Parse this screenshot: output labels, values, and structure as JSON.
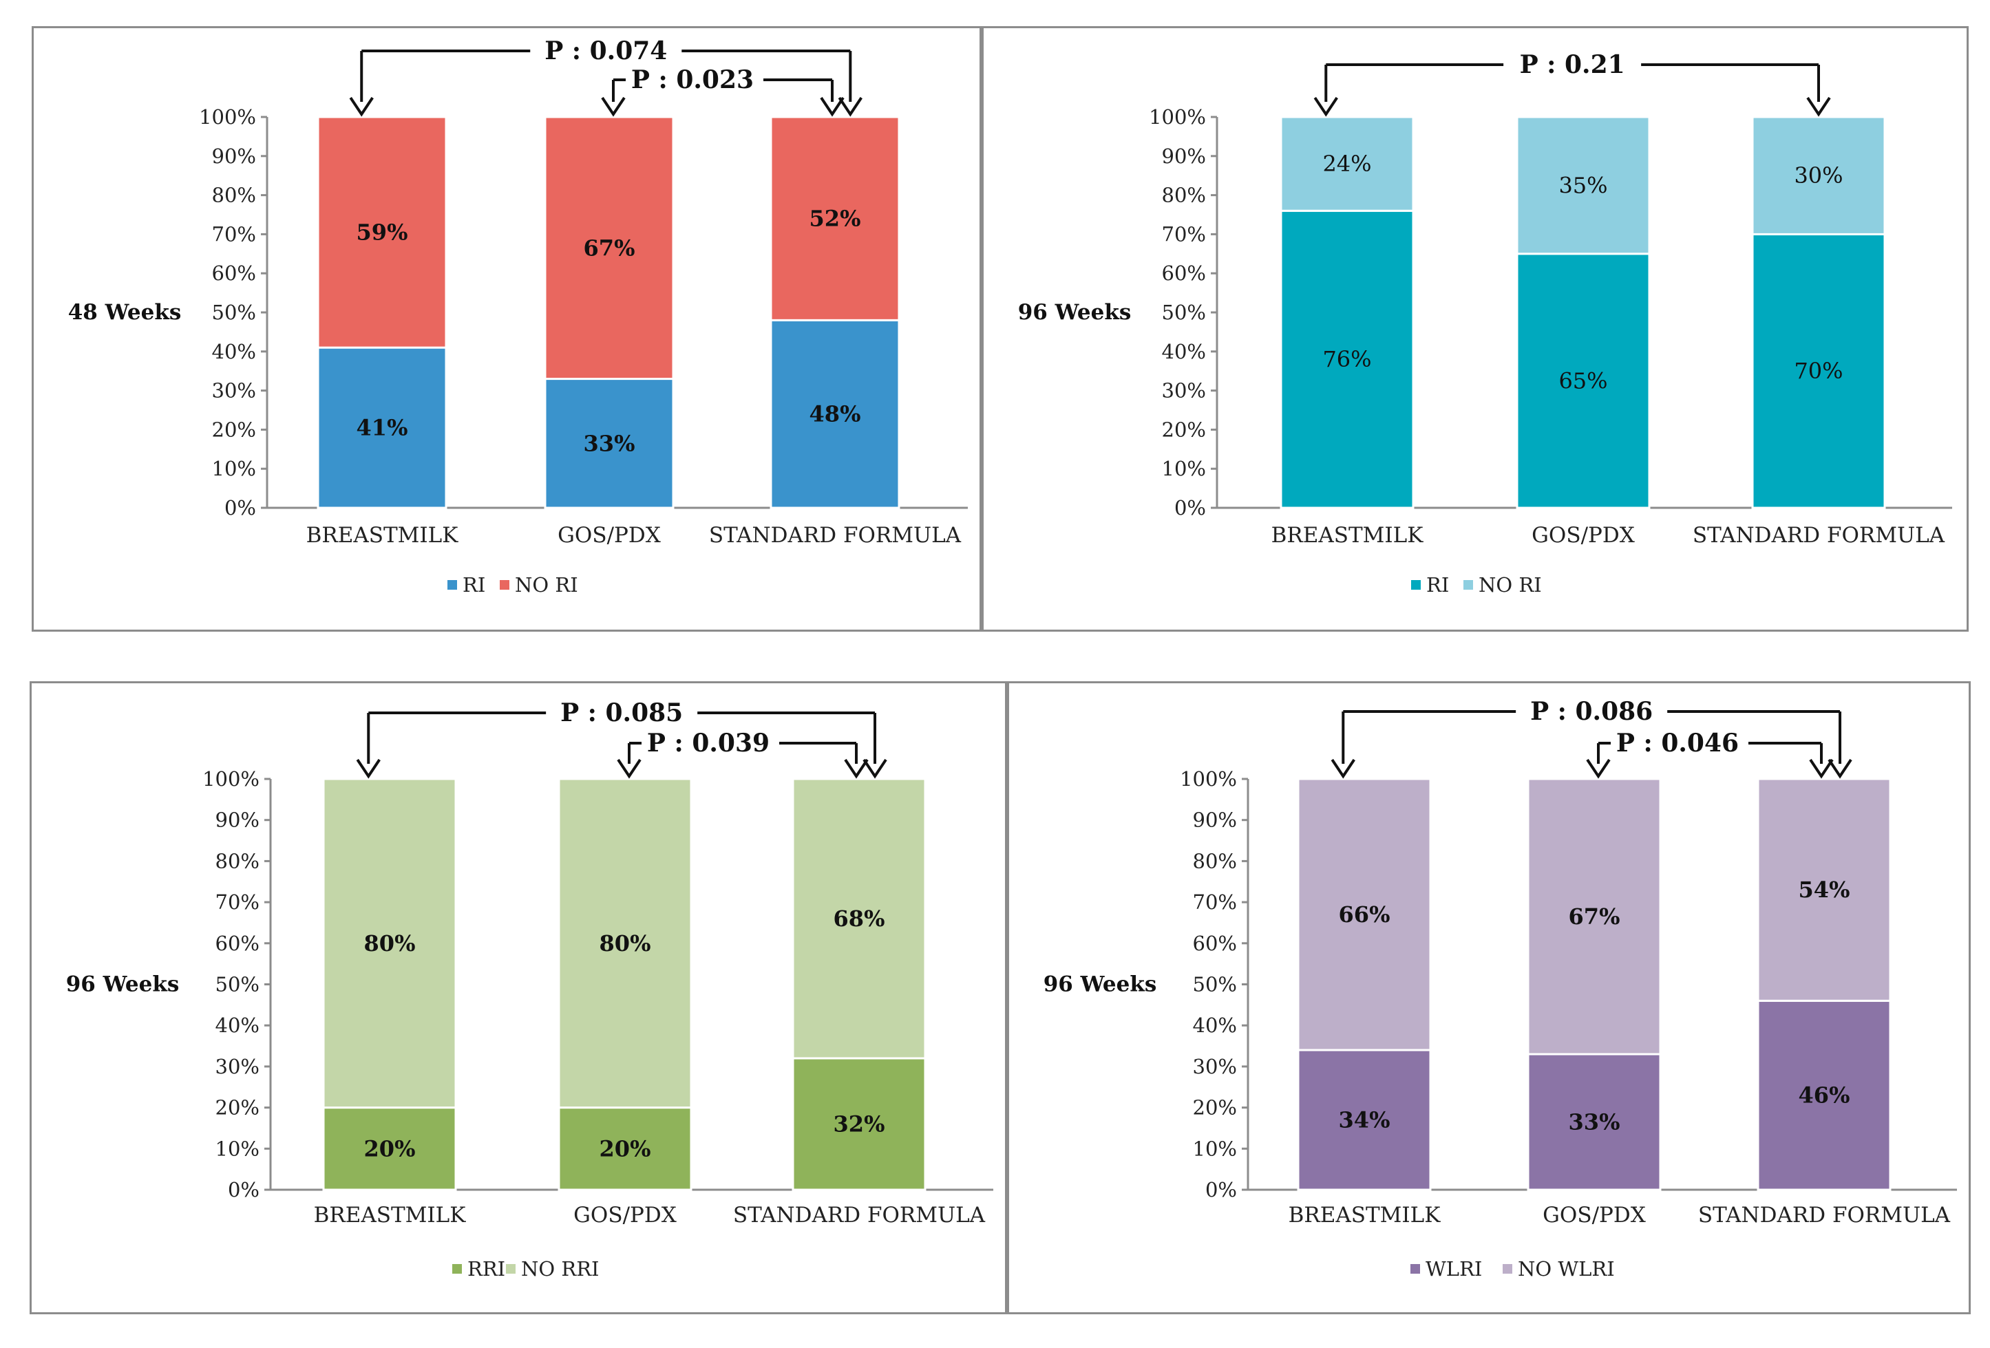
{
  "chart_data": [
    {
      "type": "bar",
      "stacked": true,
      "ylabel": "48 Weeks",
      "categories": [
        "BREASTMILK",
        "GOS/PDX",
        "STANDARD FORMULA"
      ],
      "yticks": [
        "0%",
        "10%",
        "20%",
        "30%",
        "40%",
        "50%",
        "60%",
        "70%",
        "80%",
        "90%",
        "100%"
      ],
      "ylim": [
        0,
        100
      ],
      "bold_labels": true,
      "series": [
        {
          "name": "RI",
          "color": "#3a93cc",
          "values": [
            41,
            33,
            48
          ],
          "labels": [
            "41%",
            "33%",
            "48%"
          ]
        },
        {
          "name": "NO RI",
          "color": "#e9675f",
          "values": [
            59,
            67,
            52
          ],
          "labels": [
            "59%",
            "67%",
            "52%"
          ]
        }
      ],
      "pvalues": [
        {
          "label": "P : 0.074",
          "from": 0,
          "to": 2,
          "level": 1
        },
        {
          "label": "P : 0.023",
          "from": 1,
          "to": 2,
          "level": 2
        }
      ]
    },
    {
      "type": "bar",
      "stacked": true,
      "ylabel": "96 Weeks",
      "categories": [
        "BREASTMILK",
        "GOS/PDX",
        "STANDARD FORMULA"
      ],
      "yticks": [
        "0%",
        "10%",
        "20%",
        "30%",
        "40%",
        "50%",
        "60%",
        "70%",
        "80%",
        "90%",
        "100%"
      ],
      "ylim": [
        0,
        100
      ],
      "bold_labels": false,
      "series": [
        {
          "name": "RI",
          "color": "#00a9be",
          "values": [
            76,
            65,
            70
          ],
          "labels": [
            "76%",
            "65%",
            "70%"
          ]
        },
        {
          "name": "NO RI",
          "color": "#8ecfe0",
          "values": [
            24,
            35,
            30
          ],
          "labels": [
            "24%",
            "35%",
            "30%"
          ]
        }
      ],
      "pvalues": [
        {
          "label": "P : 0.21",
          "from": 0,
          "to": 2,
          "level": 1
        }
      ]
    },
    {
      "type": "bar",
      "stacked": true,
      "ylabel": "96 Weeks",
      "categories": [
        "BREASTMILK",
        "GOS/PDX",
        "STANDARD FORMULA"
      ],
      "yticks": [
        "0%",
        "10%",
        "20%",
        "30%",
        "40%",
        "50%",
        "60%",
        "70%",
        "80%",
        "90%",
        "100%"
      ],
      "ylim": [
        0,
        100
      ],
      "bold_labels": true,
      "series": [
        {
          "name": "RRI",
          "color": "#8fb35a",
          "values": [
            20,
            20,
            32
          ],
          "labels": [
            "20%",
            "20%",
            "32%"
          ]
        },
        {
          "name": "NO RRI",
          "color": "#c3d6a8",
          "values": [
            80,
            80,
            68
          ],
          "labels": [
            "80%",
            "80%",
            "68%"
          ]
        }
      ],
      "pvalues": [
        {
          "label": "P : 0.085",
          "from": 0,
          "to": 2,
          "level": 1
        },
        {
          "label": "P : 0.039",
          "from": 1,
          "to": 2,
          "level": 2
        }
      ]
    },
    {
      "type": "bar",
      "stacked": true,
      "ylabel": "96 Weeks",
      "categories": [
        "BREASTMILK",
        "GOS/PDX",
        "STANDARD FORMULA"
      ],
      "yticks": [
        "0%",
        "10%",
        "20%",
        "30%",
        "40%",
        "50%",
        "60%",
        "70%",
        "80%",
        "90%",
        "100%"
      ],
      "ylim": [
        0,
        100
      ],
      "bold_labels": true,
      "series": [
        {
          "name": "WLRI",
          "color": "#8b74a6",
          "values": [
            34,
            33,
            46
          ],
          "labels": [
            "34%",
            "33%",
            "46%"
          ]
        },
        {
          "name": "NO WLRI",
          "color": "#bdafc9",
          "values": [
            66,
            67,
            54
          ],
          "labels": [
            "66%",
            "67%",
            "54%"
          ]
        }
      ],
      "pvalues": [
        {
          "label": "P : 0.086",
          "from": 0,
          "to": 2,
          "level": 1
        },
        {
          "label": "P : 0.046",
          "from": 1,
          "to": 2,
          "level": 2
        }
      ]
    }
  ]
}
